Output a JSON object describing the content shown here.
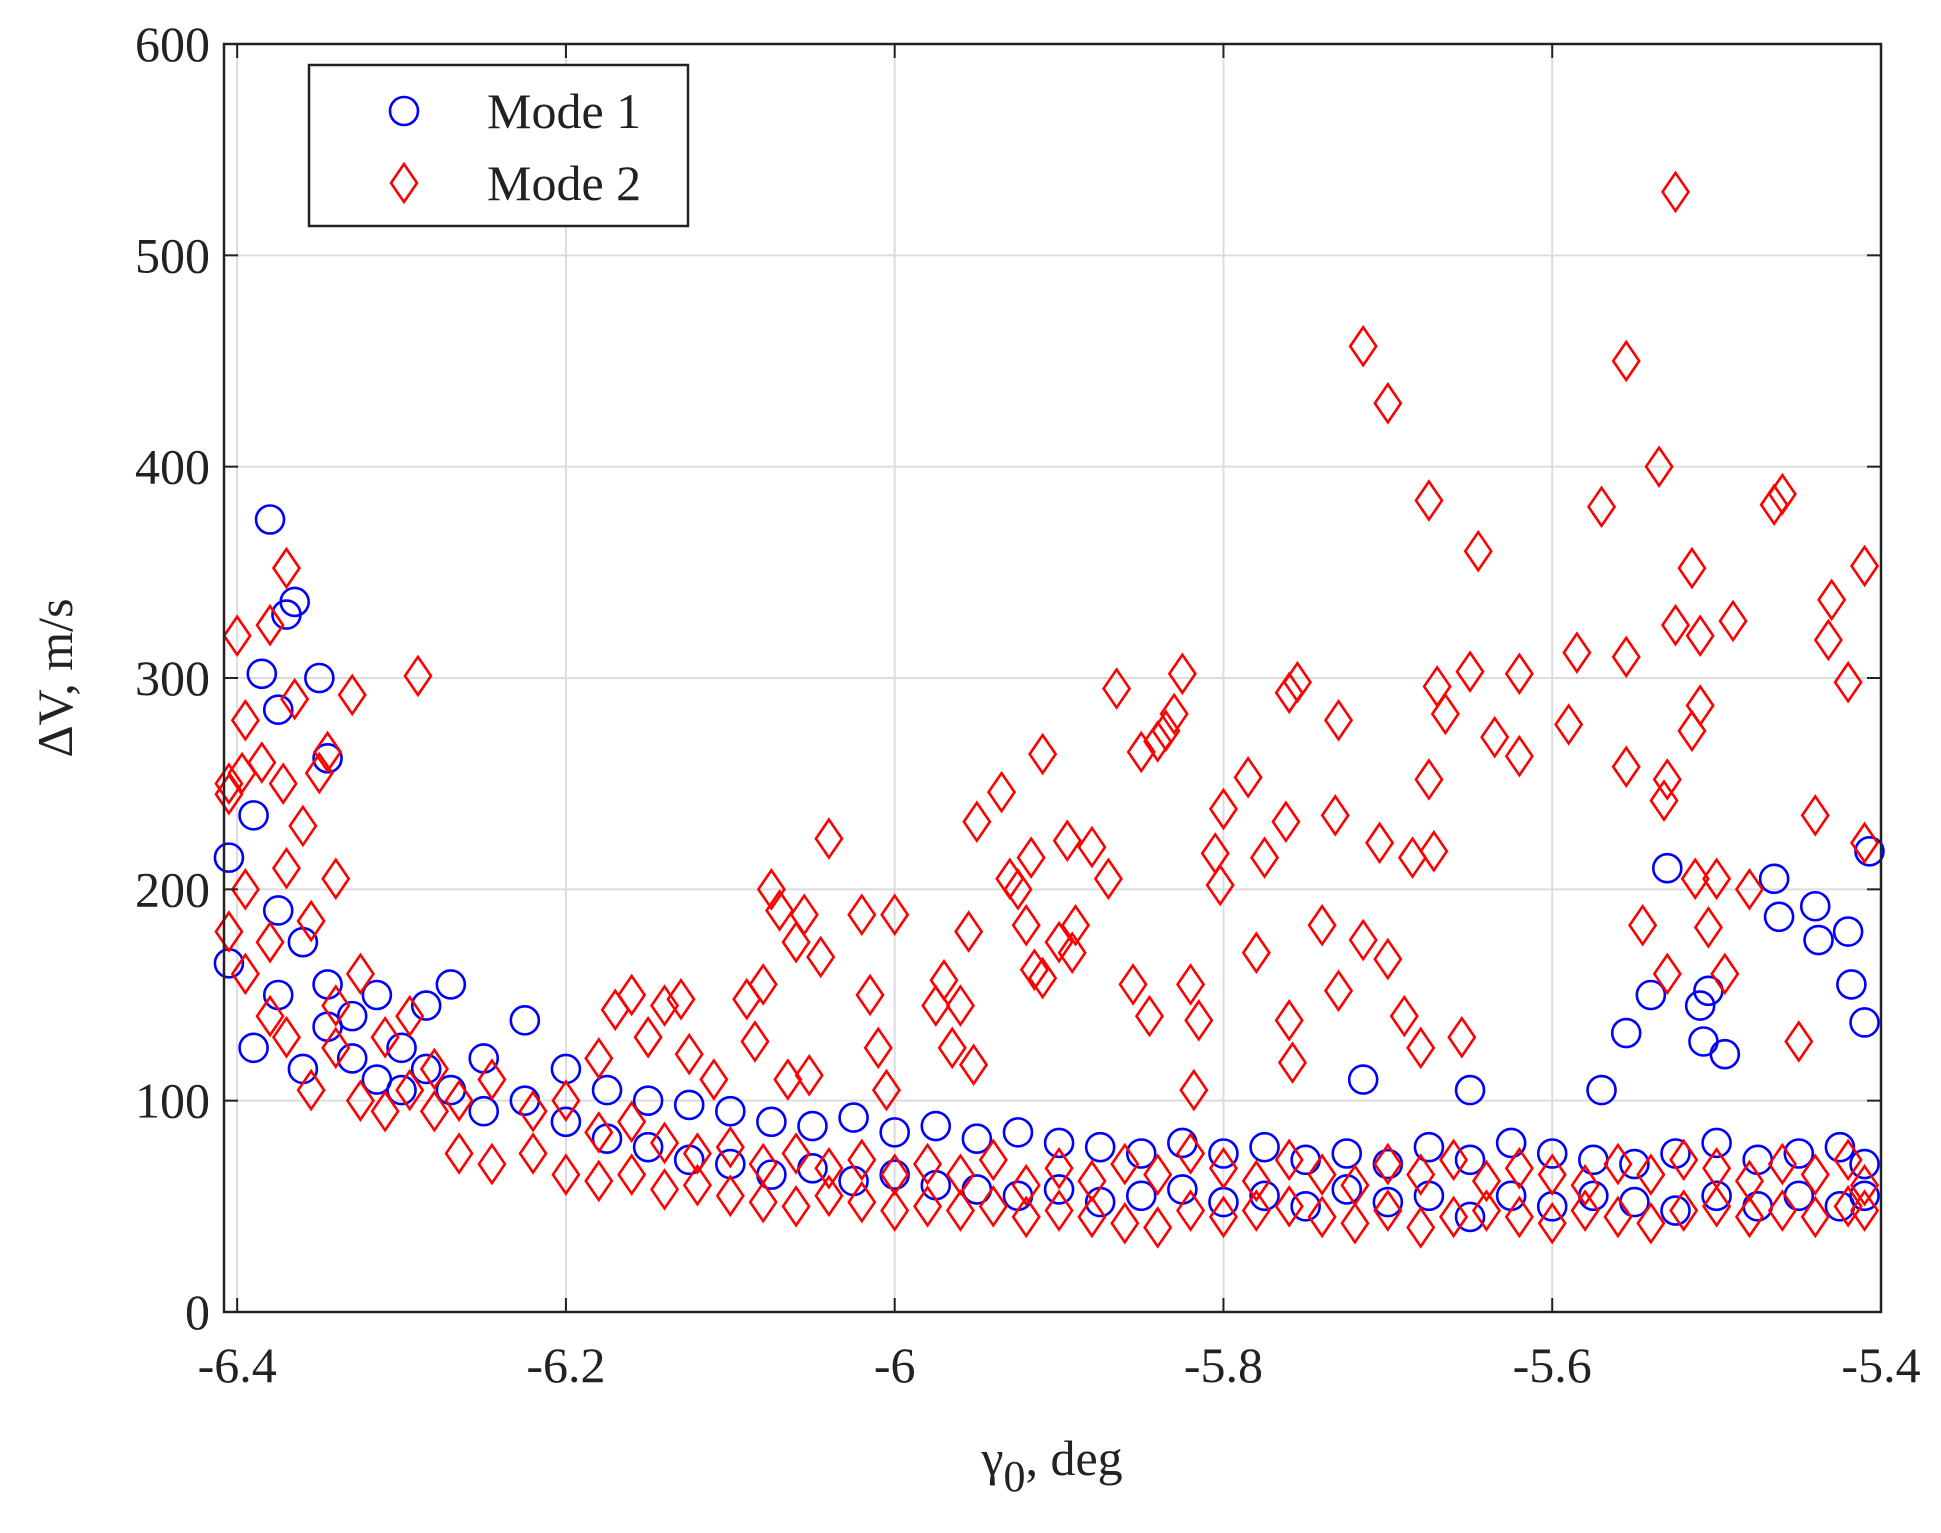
{
  "chart_data": {
    "type": "scatter",
    "xlabel": {
      "symbol": "γ",
      "subscript": "0",
      "unit": ", deg"
    },
    "ylabel": "ΔV, m/s",
    "xlim": [
      -6.408,
      -5.4
    ],
    "ylim": [
      0,
      600
    ],
    "xticks": [
      -6.4,
      -6.2,
      -6,
      -5.8,
      -5.6,
      -5.4
    ],
    "yticks": [
      0,
      100,
      200,
      300,
      400,
      500,
      600
    ],
    "grid": true,
    "legend": "upper left",
    "series": [
      {
        "name": "Mode 1",
        "color": "#0000ff",
        "marker": "circle",
        "x": [
          -6.405,
          -6.405,
          -6.39,
          -6.39,
          -6.375,
          -6.375,
          -6.36,
          -6.36,
          -6.345,
          -6.345,
          -6.33,
          -6.33,
          -6.315,
          -6.315,
          -6.3,
          -6.3,
          -6.285,
          -6.285,
          -6.27,
          -6.27,
          -6.25,
          -6.25,
          -6.225,
          -6.225,
          -6.2,
          -6.2,
          -6.175,
          -6.175,
          -6.15,
          -6.15,
          -6.125,
          -6.125,
          -6.1,
          -6.1,
          -6.075,
          -6.075,
          -6.05,
          -6.05,
          -6.025,
          -6.025,
          -6.0,
          -6.0,
          -5.975,
          -5.975,
          -5.95,
          -5.95,
          -5.925,
          -5.925,
          -5.9,
          -5.9,
          -5.875,
          -5.875,
          -5.85,
          -5.85,
          -5.825,
          -5.825,
          -5.8,
          -5.8,
          -5.775,
          -5.775,
          -5.75,
          -5.75,
          -5.725,
          -5.725,
          -5.7,
          -5.7,
          -5.675,
          -5.675,
          -5.65,
          -5.65,
          -5.625,
          -5.625,
          -5.6,
          -5.6,
          -5.575,
          -5.575,
          -5.55,
          -5.55,
          -5.525,
          -5.525,
          -5.5,
          -5.5,
          -5.475,
          -5.475,
          -5.45,
          -5.45,
          -5.425,
          -5.425,
          -5.41,
          -5.41,
          -6.38,
          -6.37,
          -6.365,
          -6.385,
          -6.375,
          -6.35,
          -6.345,
          -5.715,
          -5.65,
          -5.57,
          -5.555,
          -5.54,
          -5.53,
          -5.51,
          -5.505,
          -5.508,
          -5.495,
          -5.465,
          -5.462,
          -5.44,
          -5.438,
          -5.42,
          -5.418,
          -5.41,
          -5.407
        ],
        "values": [
          215,
          165,
          235,
          125,
          190,
          150,
          175,
          115,
          155,
          135,
          140,
          120,
          150,
          110,
          125,
          105,
          145,
          115,
          155,
          105,
          120,
          95,
          138,
          100,
          115,
          90,
          105,
          82,
          100,
          78,
          98,
          72,
          95,
          70,
          90,
          65,
          88,
          68,
          92,
          62,
          85,
          65,
          88,
          60,
          82,
          58,
          85,
          55,
          80,
          58,
          78,
          52,
          75,
          55,
          80,
          58,
          75,
          52,
          78,
          55,
          72,
          50,
          75,
          58,
          70,
          52,
          78,
          55,
          72,
          45,
          80,
          55,
          75,
          50,
          72,
          55,
          70,
          52,
          75,
          48,
          80,
          55,
          72,
          50,
          75,
          55,
          78,
          50,
          70,
          55,
          375,
          330,
          336,
          302,
          285,
          300,
          262,
          110,
          105,
          105,
          132,
          150,
          210,
          145,
          152,
          128,
          122,
          205,
          187,
          192,
          176,
          180,
          155,
          137,
          218
        ]
      },
      {
        "name": "Mode 2",
        "color": "#ff0000",
        "marker": "diamond",
        "x": [
          -6.405,
          -6.405,
          -6.395,
          -6.395,
          -6.38,
          -6.38,
          -6.37,
          -6.37,
          -6.355,
          -6.355,
          -6.34,
          -6.34,
          -6.325,
          -6.325,
          -6.31,
          -6.31,
          -6.295,
          -6.295,
          -6.28,
          -6.28,
          -6.265,
          -6.265,
          -6.245,
          -6.245,
          -6.22,
          -6.22,
          -6.2,
          -6.2,
          -6.18,
          -6.18,
          -6.16,
          -6.16,
          -6.14,
          -6.14,
          -6.12,
          -6.12,
          -6.1,
          -6.1,
          -6.08,
          -6.08,
          -6.06,
          -6.06,
          -6.04,
          -6.04,
          -6.02,
          -6.02,
          -6.0,
          -6.0,
          -5.98,
          -5.98,
          -5.96,
          -5.96,
          -5.94,
          -5.94,
          -5.92,
          -5.92,
          -5.9,
          -5.9,
          -5.88,
          -5.88,
          -5.86,
          -5.86,
          -5.84,
          -5.84,
          -5.82,
          -5.82,
          -5.8,
          -5.8,
          -5.78,
          -5.78,
          -5.76,
          -5.76,
          -5.74,
          -5.74,
          -5.72,
          -5.72,
          -5.7,
          -5.7,
          -5.68,
          -5.68,
          -5.66,
          -5.66,
          -5.64,
          -5.64,
          -5.62,
          -5.62,
          -5.6,
          -5.6,
          -5.58,
          -5.58,
          -5.56,
          -5.56,
          -5.54,
          -5.54,
          -5.52,
          -5.52,
          -5.5,
          -5.5,
          -5.48,
          -5.48,
          -5.46,
          -5.46,
          -5.44,
          -5.44,
          -5.42,
          -5.42,
          -5.41,
          -5.41,
          -5.715,
          -5.7,
          -5.555,
          -5.525,
          -5.535,
          -5.57,
          -5.675,
          -5.645,
          -5.465,
          -5.46,
          -5.41,
          -5.515,
          -5.43,
          -5.432,
          -5.49,
          -5.51,
          -5.525,
          -5.555,
          -5.585,
          -5.65,
          -5.62,
          -5.67,
          -5.665,
          -5.59,
          -5.635,
          -5.62,
          -5.555,
          -5.53,
          -5.532,
          -5.42,
          -5.51,
          -5.515,
          -5.44,
          -5.45,
          -5.41,
          -5.5,
          -5.48,
          -5.545,
          -5.505,
          -5.513,
          -5.495,
          -5.53,
          -5.825,
          -5.83,
          -5.835,
          -5.84,
          -5.85,
          -5.865,
          -5.755,
          -5.76,
          -5.73,
          -5.785,
          -5.8,
          -5.805,
          -5.802,
          -5.775,
          -5.762,
          -5.732,
          -5.705,
          -5.685,
          -5.675,
          -5.672,
          -5.74,
          -5.715,
          -5.7,
          -5.69,
          -5.68,
          -5.655,
          -5.73,
          -5.78,
          -5.76,
          -5.758,
          -5.82,
          -5.815,
          -5.818,
          -5.845,
          -5.855,
          -5.87,
          -5.88,
          -5.895,
          -5.89,
          -5.892,
          -5.9,
          -5.91,
          -5.915,
          -5.92,
          -5.917,
          -5.93,
          -5.925,
          -5.935,
          -5.91,
          -5.95,
          -5.955,
          -5.97,
          -5.975,
          -5.96,
          -5.965,
          -5.952,
          -6.0,
          -6.02,
          -6.015,
          -6.01,
          -6.005,
          -6.04,
          -6.045,
          -6.055,
          -6.075,
          -6.07,
          -6.06,
          -6.08,
          -6.09,
          -6.085,
          -6.065,
          -6.052,
          -6.13,
          -6.14,
          -6.16,
          -6.17,
          -6.15,
          -6.125,
          -6.11,
          -6.18,
          -6.29,
          -6.33,
          -6.345,
          -6.35,
          -6.365,
          -6.37,
          -6.38,
          -6.4,
          -6.395,
          -6.385,
          -6.372,
          -6.397,
          -6.405,
          -6.36,
          -6.34
        ],
        "values": [
          250,
          180,
          200,
          160,
          175,
          140,
          210,
          130,
          185,
          105,
          145,
          125,
          160,
          100,
          130,
          95,
          140,
          105,
          115,
          95,
          100,
          75,
          110,
          70,
          95,
          75,
          100,
          65,
          85,
          62,
          90,
          65,
          80,
          58,
          75,
          60,
          78,
          55,
          70,
          52,
          75,
          50,
          68,
          55,
          72,
          52,
          65,
          48,
          70,
          50,
          65,
          48,
          72,
          50,
          60,
          45,
          68,
          48,
          62,
          45,
          70,
          42,
          65,
          40,
          75,
          48,
          68,
          45,
          62,
          48,
          72,
          50,
          65,
          45,
          60,
          42,
          70,
          48,
          65,
          40,
          72,
          45,
          62,
          48,
          68,
          45,
          65,
          42,
          60,
          48,
          70,
          45,
          65,
          42,
          72,
          48,
          68,
          50,
          62,
          45,
          70,
          48,
          65,
          45,
          72,
          50,
          60,
          48,
          457,
          430,
          450,
          530,
          400,
          381,
          384,
          360,
          382,
          387,
          353,
          352,
          337,
          318,
          327,
          320,
          325,
          310,
          312,
          303,
          302,
          296,
          283,
          278,
          272,
          263,
          258,
          252,
          242,
          298,
          287,
          275,
          235,
          128,
          222,
          205,
          200,
          183,
          182,
          205,
          160,
          160,
          302,
          283,
          275,
          270,
          265,
          295,
          298,
          293,
          280,
          253,
          238,
          217,
          202,
          215,
          232,
          235,
          222,
          215,
          252,
          218,
          183,
          176,
          167,
          140,
          125,
          130,
          152,
          170,
          138,
          118,
          155,
          138,
          105,
          140,
          155,
          205,
          220,
          223,
          183,
          170,
          175,
          158,
          162,
          183,
          215,
          205,
          200,
          246,
          264,
          232,
          180,
          157,
          145,
          145,
          125,
          117,
          188,
          188,
          150,
          125,
          105,
          224,
          168,
          188,
          200,
          190,
          175,
          155,
          148,
          128,
          110,
          112,
          148,
          145,
          150,
          143,
          130,
          122,
          110,
          120,
          301,
          292,
          265,
          255,
          290,
          352,
          325,
          320,
          280,
          260,
          250,
          255,
          245,
          230,
          205
        ]
      }
    ]
  }
}
